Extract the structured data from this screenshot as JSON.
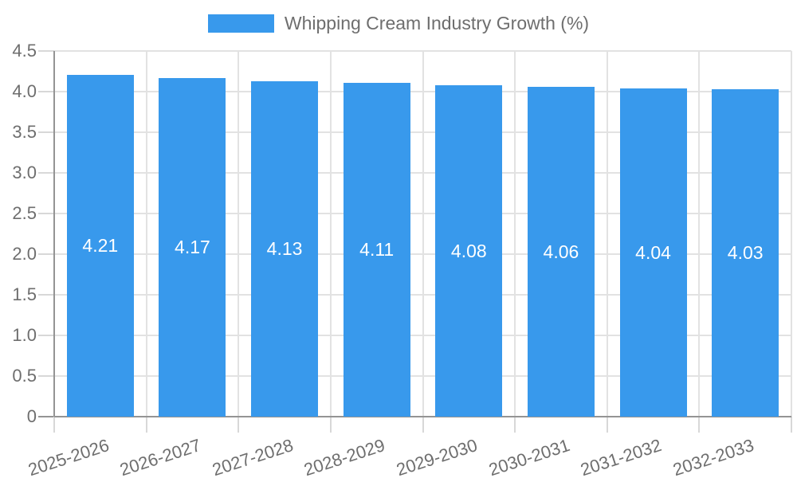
{
  "chart_data": {
    "type": "bar",
    "title": "Whipping Cream Industry Growth (%)",
    "legend": {
      "label": "Whipping Cream Industry Growth (%)",
      "position": "top"
    },
    "categories": [
      "2025-2026",
      "2026-2027",
      "2027-2028",
      "2028-2029",
      "2029-2030",
      "2030-2031",
      "2031-2032",
      "2032-2033"
    ],
    "values": [
      4.21,
      4.17,
      4.13,
      4.11,
      4.08,
      4.06,
      4.04,
      4.03
    ],
    "value_labels": [
      "4.21",
      "4.17",
      "4.13",
      "4.11",
      "4.08",
      "4.06",
      "4.04",
      "4.03"
    ],
    "xlabel": "",
    "ylabel": "",
    "ylim": [
      0,
      4.5
    ],
    "ytick_step": 0.5,
    "ytick_labels": [
      "0",
      "0.5",
      "1.0",
      "1.5",
      "2.0",
      "2.5",
      "3.0",
      "3.5",
      "4.0",
      "4.5"
    ],
    "grid": true,
    "colors": {
      "bar": "#3899EC",
      "bar_label_text": "#FFFFFF",
      "grid_line": "#E2E2E2",
      "axis_line": "#949494",
      "tick_mark": "#D8D8D8",
      "tick_text": "#6E6E6E",
      "legend_text": "#6E6E6E",
      "background": "#FFFFFF"
    }
  }
}
